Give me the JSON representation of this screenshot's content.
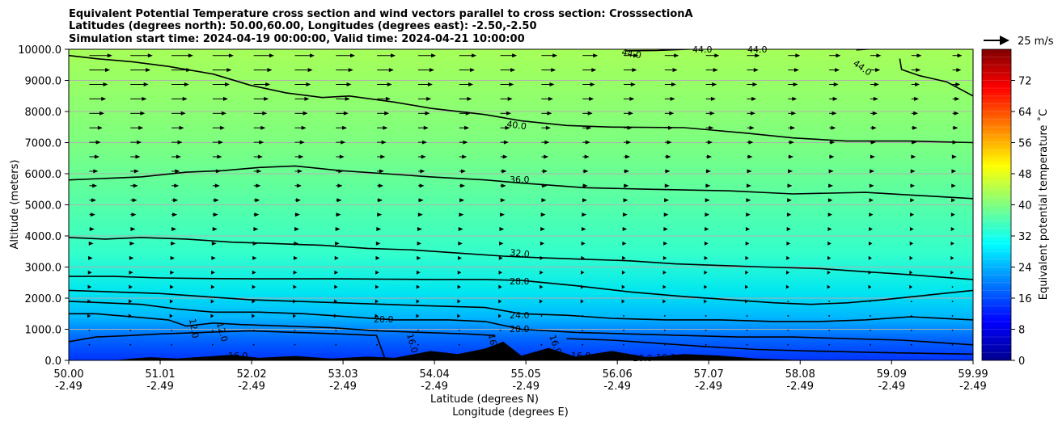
{
  "chart_data": {
    "type": "heatmap",
    "title_lines": [
      "Equivalent Potential Temperature cross section and wind vectors parallel to cross section: CrosssectionA",
      "Latitudes (degrees north): 50.00,60.00, Longitudes (degrees east): -2.50,-2.50",
      "Simulation start time: 2024-04-19 00:00:00, Valid time: 2024-04-21 10:00:00"
    ],
    "xlabel_lines": [
      "Latitude (degrees N)",
      "Longitude (degrees E)"
    ],
    "ylabel": "Altitude (meters)",
    "xlim": [
      50.0,
      59.99
    ],
    "ylim": [
      0,
      10000
    ],
    "x_ticks": [
      {
        "lat": 50.0,
        "lat_label": "50.00",
        "lon_label": "-2.49"
      },
      {
        "lat": 51.01,
        "lat_label": "51.01",
        "lon_label": "-2.49"
      },
      {
        "lat": 52.02,
        "lat_label": "52.02",
        "lon_label": "-2.49"
      },
      {
        "lat": 53.03,
        "lat_label": "53.03",
        "lon_label": "-2.49"
      },
      {
        "lat": 54.04,
        "lat_label": "54.04",
        "lon_label": "-2.49"
      },
      {
        "lat": 55.05,
        "lat_label": "55.05",
        "lon_label": "-2.49"
      },
      {
        "lat": 56.06,
        "lat_label": "56.06",
        "lon_label": "-2.49"
      },
      {
        "lat": 57.07,
        "lat_label": "57.07",
        "lon_label": "-2.49"
      },
      {
        "lat": 58.08,
        "lat_label": "58.08",
        "lon_label": "-2.49"
      },
      {
        "lat": 59.09,
        "lat_label": "59.09",
        "lon_label": "-2.49"
      },
      {
        "lat": 59.99,
        "lat_label": "59.99",
        "lon_label": "-2.49"
      }
    ],
    "y_ticks": [
      {
        "value": 0,
        "label": "0.0"
      },
      {
        "value": 1000,
        "label": "1000.0"
      },
      {
        "value": 2000,
        "label": "2000.0"
      },
      {
        "value": 3000,
        "label": "3000.0"
      },
      {
        "value": 4000,
        "label": "4000.0"
      },
      {
        "value": 5000,
        "label": "5000.0"
      },
      {
        "value": 6000,
        "label": "6000.0"
      },
      {
        "value": 7000,
        "label": "7000.0"
      },
      {
        "value": 8000,
        "label": "8000.0"
      },
      {
        "value": 9000,
        "label": "9000.0"
      },
      {
        "value": 10000,
        "label": "10000.0"
      }
    ],
    "grid": "horizontal",
    "colorbar": {
      "label": "Equivalent potential temperature $^\\circ$C",
      "label_display": "Equivalent potential temperature ˚C",
      "range": [
        0,
        80
      ],
      "ticks": [
        0,
        8,
        16,
        24,
        32,
        40,
        48,
        56,
        64,
        72
      ],
      "tick_labels": [
        "0",
        "8",
        "16",
        "24",
        "32",
        "40",
        "48",
        "56",
        "64",
        "72"
      ],
      "colormap": "jet"
    },
    "quiver_key": {
      "label": "25 m/s",
      "speed": 25
    },
    "contour_labels": [
      "44.0",
      "44.0",
      "44.0",
      "44.0",
      "40.0",
      "36.0",
      "32.0",
      "28.0",
      "24.0",
      "20.0",
      "20.0",
      "12.0",
      "12.0",
      "16.0",
      "16.0",
      "16.0",
      "16.0",
      "16.0",
      "16.0",
      "16.0"
    ],
    "contours": [
      {
        "level": 44,
        "points": [
          [
            56.15,
            9950
          ],
          [
            56.5,
            9960
          ],
          [
            57.0,
            10020
          ]
        ]
      },
      {
        "level": 44,
        "points": [
          [
            58.7,
            9980
          ],
          [
            59.1,
            10060
          ]
        ]
      },
      {
        "level": 44,
        "points": [
          [
            59.18,
            9700
          ],
          [
            59.2,
            9350
          ],
          [
            59.4,
            9150
          ],
          [
            59.7,
            8950
          ],
          [
            59.99,
            8500
          ]
        ]
      },
      {
        "level": 40,
        "points": [
          [
            50.0,
            9800
          ],
          [
            50.3,
            9700
          ],
          [
            50.7,
            9600
          ],
          [
            51.1,
            9450
          ],
          [
            51.6,
            9200
          ],
          [
            52.0,
            8850
          ],
          [
            52.4,
            8600
          ],
          [
            52.8,
            8450
          ],
          [
            53.1,
            8500
          ],
          [
            53.6,
            8300
          ],
          [
            54.0,
            8100
          ],
          [
            54.6,
            7900
          ],
          [
            55.0,
            7700
          ],
          [
            55.5,
            7550
          ],
          [
            56.0,
            7500
          ],
          [
            56.8,
            7480
          ],
          [
            57.5,
            7300
          ],
          [
            58.0,
            7150
          ],
          [
            58.6,
            7050
          ],
          [
            59.3,
            7050
          ],
          [
            59.99,
            7000
          ]
        ]
      },
      {
        "level": 36,
        "points": [
          [
            50.0,
            5800
          ],
          [
            50.4,
            5850
          ],
          [
            50.8,
            5900
          ],
          [
            51.3,
            6050
          ],
          [
            51.7,
            6100
          ],
          [
            52.1,
            6200
          ],
          [
            52.5,
            6250
          ],
          [
            53.0,
            6100
          ],
          [
            53.5,
            6000
          ],
          [
            54.0,
            5900
          ],
          [
            54.6,
            5800
          ],
          [
            55.0,
            5700
          ],
          [
            55.7,
            5550
          ],
          [
            56.4,
            5500
          ],
          [
            57.3,
            5450
          ],
          [
            58.0,
            5350
          ],
          [
            58.8,
            5400
          ],
          [
            59.99,
            5200
          ]
        ]
      },
      {
        "level": 32,
        "points": [
          [
            50.0,
            3950
          ],
          [
            50.4,
            3900
          ],
          [
            50.8,
            3950
          ],
          [
            51.3,
            3900
          ],
          [
            51.8,
            3800
          ],
          [
            52.3,
            3750
          ],
          [
            52.8,
            3700
          ],
          [
            53.3,
            3600
          ],
          [
            53.8,
            3550
          ],
          [
            54.3,
            3450
          ],
          [
            54.8,
            3350
          ],
          [
            55.2,
            3300
          ],
          [
            55.7,
            3250
          ],
          [
            56.2,
            3200
          ],
          [
            56.7,
            3100
          ],
          [
            57.2,
            3050
          ],
          [
            57.7,
            3000
          ],
          [
            58.3,
            2950
          ],
          [
            58.8,
            2850
          ],
          [
            59.3,
            2750
          ],
          [
            59.99,
            2600
          ]
        ]
      },
      {
        "level": 28,
        "points": [
          [
            50.0,
            2700
          ],
          [
            50.5,
            2700
          ],
          [
            51.0,
            2650
          ],
          [
            51.5,
            2630
          ],
          [
            52.0,
            2620
          ],
          [
            52.5,
            2620
          ],
          [
            53.0,
            2620
          ],
          [
            53.5,
            2610
          ],
          [
            54.0,
            2600
          ],
          [
            54.6,
            2600
          ],
          [
            55.0,
            2570
          ],
          [
            55.6,
            2400
          ],
          [
            56.2,
            2200
          ],
          [
            56.8,
            2050
          ],
          [
            57.3,
            1950
          ],
          [
            57.8,
            1850
          ],
          [
            58.2,
            1800
          ],
          [
            58.6,
            1850
          ],
          [
            59.0,
            1950
          ],
          [
            59.5,
            2100
          ],
          [
            59.99,
            2250
          ]
        ]
      },
      {
        "level": 24,
        "points": [
          [
            50.0,
            2250
          ],
          [
            50.5,
            2200
          ],
          [
            51.0,
            2150
          ],
          [
            51.5,
            2050
          ],
          [
            52.0,
            1950
          ],
          [
            52.5,
            1900
          ],
          [
            53.0,
            1850
          ],
          [
            53.5,
            1800
          ],
          [
            54.0,
            1750
          ],
          [
            54.6,
            1700
          ],
          [
            55.0,
            1500
          ],
          [
            55.5,
            1450
          ],
          [
            56.0,
            1350
          ],
          [
            56.6,
            1300
          ],
          [
            57.2,
            1300
          ],
          [
            57.8,
            1250
          ],
          [
            58.3,
            1250
          ],
          [
            58.8,
            1300
          ],
          [
            59.3,
            1400
          ],
          [
            59.99,
            1300
          ]
        ]
      },
      {
        "level": 20,
        "points": [
          [
            50.0,
            1900
          ],
          [
            50.4,
            1850
          ],
          [
            50.8,
            1800
          ],
          [
            51.2,
            1650
          ],
          [
            51.6,
            1550
          ],
          [
            52.1,
            1550
          ],
          [
            52.6,
            1500
          ],
          [
            53.1,
            1400
          ],
          [
            53.6,
            1300
          ],
          [
            54.2,
            1300
          ],
          [
            54.6,
            1250
          ],
          [
            55.0,
            1000
          ],
          [
            55.6,
            900
          ],
          [
            56.2,
            850
          ],
          [
            56.8,
            800
          ],
          [
            57.4,
            750
          ],
          [
            58.0,
            750
          ],
          [
            58.6,
            700
          ],
          [
            59.2,
            650
          ],
          [
            59.99,
            500
          ]
        ]
      },
      {
        "level": 20,
        "points": [
          [
            50.0,
            1500
          ],
          [
            50.3,
            1500
          ],
          [
            50.7,
            1400
          ],
          [
            51.1,
            1300
          ],
          [
            51.3,
            1100
          ],
          [
            51.6,
            1200
          ],
          [
            51.9,
            1150
          ],
          [
            52.4,
            1100
          ],
          [
            52.9,
            1050
          ],
          [
            53.4,
            950
          ],
          [
            53.9,
            900
          ],
          [
            54.4,
            850
          ],
          [
            54.7,
            800
          ]
        ]
      },
      {
        "level": 16,
        "points": [
          [
            50.0,
            600
          ],
          [
            50.3,
            750
          ],
          [
            50.7,
            800
          ],
          [
            51.0,
            850
          ],
          [
            51.5,
            900
          ],
          [
            52.0,
            950
          ],
          [
            52.5,
            900
          ],
          [
            53.0,
            850
          ],
          [
            53.4,
            800
          ],
          [
            53.5,
            0
          ]
        ]
      },
      {
        "level": 16,
        "points": [
          [
            55.5,
            700
          ],
          [
            56.0,
            650
          ],
          [
            56.5,
            550
          ],
          [
            57.0,
            450
          ],
          [
            57.6,
            350
          ],
          [
            58.2,
            300
          ],
          [
            59.0,
            250
          ],
          [
            59.99,
            200
          ]
        ]
      }
    ],
    "terrain_profile": [
      [
        50.0,
        0
      ],
      [
        50.5,
        0
      ],
      [
        50.7,
        60
      ],
      [
        50.9,
        100
      ],
      [
        51.2,
        60
      ],
      [
        51.5,
        120
      ],
      [
        51.8,
        180
      ],
      [
        52.1,
        80
      ],
      [
        52.5,
        140
      ],
      [
        52.9,
        60
      ],
      [
        53.3,
        120
      ],
      [
        53.6,
        80
      ],
      [
        54.0,
        300
      ],
      [
        54.3,
        200
      ],
      [
        54.6,
        380
      ],
      [
        54.8,
        600
      ],
      [
        55.0,
        150
      ],
      [
        55.3,
        400
      ],
      [
        55.6,
        120
      ],
      [
        56.0,
        300
      ],
      [
        56.4,
        100
      ],
      [
        56.8,
        200
      ],
      [
        57.2,
        150
      ],
      [
        57.6,
        60
      ],
      [
        58.0,
        20
      ],
      [
        58.5,
        0
      ],
      [
        59.99,
        0
      ]
    ],
    "wind_u_profile": [
      [
        0,
        -1
      ],
      [
        1000,
        1
      ],
      [
        2000,
        2
      ],
      [
        3000,
        3
      ],
      [
        4000,
        5
      ],
      [
        5000,
        7
      ],
      [
        6000,
        9
      ],
      [
        7000,
        12
      ],
      [
        8000,
        16
      ],
      [
        9000,
        20
      ],
      [
        9800,
        24
      ]
    ]
  }
}
